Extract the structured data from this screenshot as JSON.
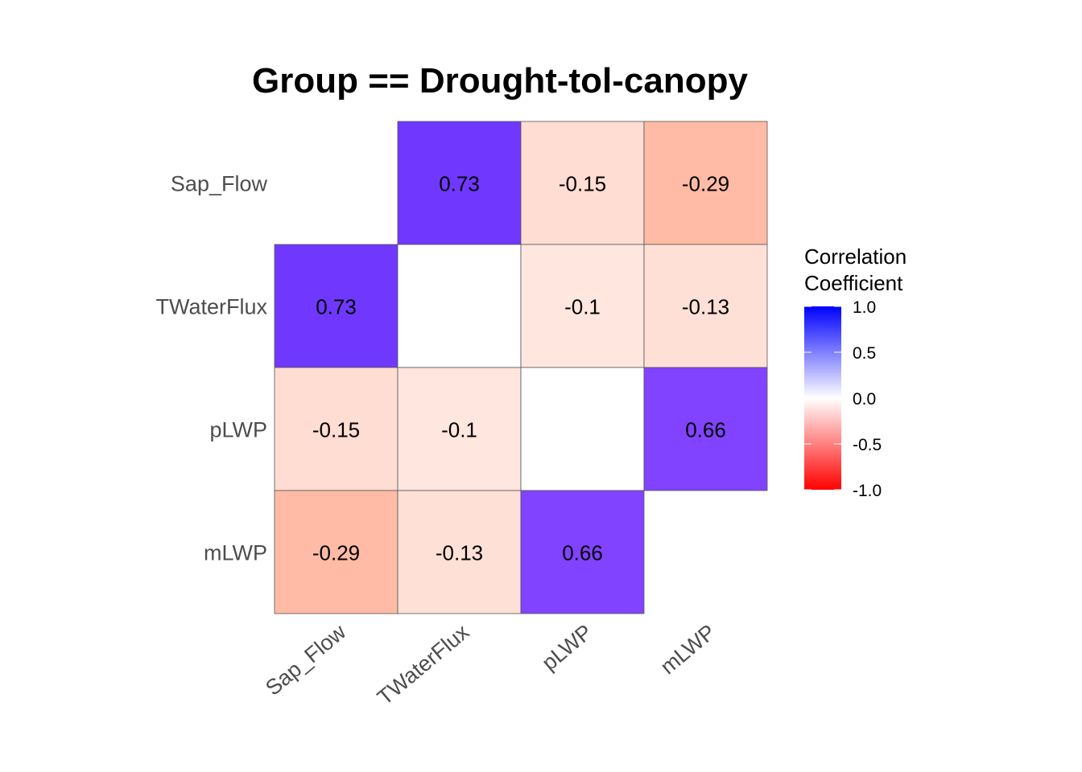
{
  "chart_data": {
    "type": "heatmap",
    "title": "Group == Drought-tol-canopy",
    "rows": [
      "Sap_Flow",
      "TWaterFlux",
      "pLWP",
      "mLWP"
    ],
    "columns": [
      "Sap_Flow",
      "TWaterFlux",
      "pLWP",
      "mLWP"
    ],
    "cells": [
      {
        "row": "Sap_Flow",
        "col": "TWaterFlux",
        "value": 0.73,
        "label": "0.73"
      },
      {
        "row": "Sap_Flow",
        "col": "pLWP",
        "value": -0.15,
        "label": "-0.15"
      },
      {
        "row": "Sap_Flow",
        "col": "mLWP",
        "value": -0.29,
        "label": "-0.29"
      },
      {
        "row": "TWaterFlux",
        "col": "Sap_Flow",
        "value": 0.73,
        "label": "0.73"
      },
      {
        "row": "TWaterFlux",
        "col": "TWaterFlux",
        "value": 0,
        "label": ""
      },
      {
        "row": "TWaterFlux",
        "col": "pLWP",
        "value": -0.1,
        "label": "-0.1"
      },
      {
        "row": "TWaterFlux",
        "col": "mLWP",
        "value": -0.13,
        "label": "-0.13"
      },
      {
        "row": "pLWP",
        "col": "Sap_Flow",
        "value": -0.15,
        "label": "-0.15"
      },
      {
        "row": "pLWP",
        "col": "TWaterFlux",
        "value": -0.1,
        "label": "-0.1"
      },
      {
        "row": "pLWP",
        "col": "pLWP",
        "value": 0,
        "label": ""
      },
      {
        "row": "pLWP",
        "col": "mLWP",
        "value": 0.66,
        "label": "0.66"
      },
      {
        "row": "mLWP",
        "col": "Sap_Flow",
        "value": -0.29,
        "label": "-0.29"
      },
      {
        "row": "mLWP",
        "col": "TWaterFlux",
        "value": -0.13,
        "label": "-0.13"
      },
      {
        "row": "mLWP",
        "col": "pLWP",
        "value": 0.66,
        "label": "0.66"
      }
    ],
    "legend": {
      "title_lines": [
        "Correlation",
        "Coefficient"
      ],
      "ticks": [
        "1.0",
        "0.5",
        "0.0",
        "-0.5",
        "-1.0"
      ],
      "range": [
        -1,
        1
      ],
      "low_color": "#ff0000",
      "mid_color": "#ffffff",
      "high_color": "#0000ff",
      "placement": "right"
    }
  }
}
